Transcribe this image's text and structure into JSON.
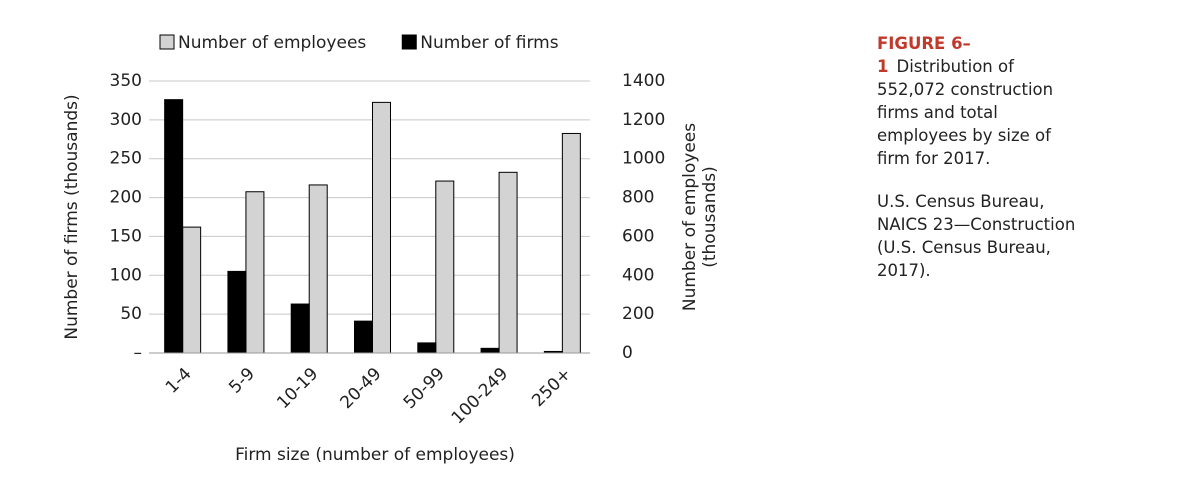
{
  "chart_data": {
    "type": "bar",
    "xlabel": "Firm size (number of employees)",
    "ylabel": "Number of firms (thousands)",
    "y2label": [
      "Number of employees",
      "(thousands)"
    ],
    "categories": [
      "1-4",
      "5-9",
      "10-19",
      "20-49",
      "50-99",
      "100-249",
      "250+"
    ],
    "series": [
      {
        "name": "Number of employees",
        "color": "#d3d3d3",
        "axis": "y2",
        "values": [
          648,
          830,
          865,
          1290,
          885,
          930,
          1130
        ]
      },
      {
        "name": "Number of firms",
        "color": "#000000",
        "values": [
          326,
          105,
          63,
          41,
          13,
          6,
          2
        ]
      }
    ],
    "ylim": [
      0,
      350
    ],
    "yticks": [
      {
        "value": 0,
        "label": "–"
      },
      50,
      100,
      150,
      200,
      250,
      300,
      350
    ],
    "y2lim": [
      0,
      1400
    ],
    "y2ticks": [
      0,
      200,
      400,
      600,
      800,
      1000,
      1200,
      1400
    ],
    "grid": true,
    "legend": "top"
  },
  "caption": {
    "label": "FIGURE 6–1",
    "text": "Distribution of 552,072 construction firms and total employees by size of firm for 2017.",
    "source": "U.S. Census Bureau, NAICS 23—Construction (U.S. Census Bureau, 2017)."
  }
}
